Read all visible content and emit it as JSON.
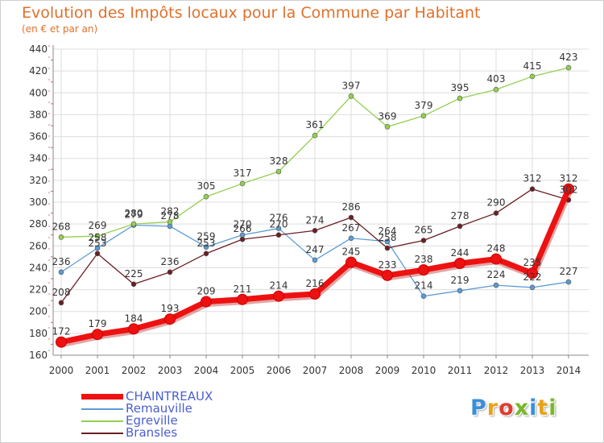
{
  "header": {
    "title": "Evolution des Impôts locaux pour la Commune par Habitant",
    "subtitle": "(en € et par an)"
  },
  "logo": {
    "text": "Proxiti",
    "colors": [
      "#3a8fd8",
      "#e8a317",
      "#e03c31",
      "#79b829",
      "#3a8fd8",
      "#e8a317",
      "#79b829"
    ]
  },
  "chart_data": {
    "type": "line",
    "categories": [
      "2000",
      "2001",
      "2002",
      "2003",
      "2004",
      "2005",
      "2006",
      "2007",
      "2008",
      "2009",
      "2010",
      "2011",
      "2012",
      "2013",
      "2014"
    ],
    "ylim": [
      160,
      440
    ],
    "yticks": [
      160,
      180,
      200,
      220,
      240,
      260,
      280,
      300,
      320,
      340,
      360,
      380,
      400,
      420,
      440
    ],
    "grid": true,
    "legend": "bottom-left",
    "series": [
      {
        "name": "CHAINTREAUX",
        "color": "#ee1111",
        "values": [
          172,
          179,
          184,
          193,
          209,
          211,
          214,
          216,
          245,
          233,
          238,
          244,
          248,
          235,
          312
        ]
      },
      {
        "name": "Remauville",
        "color": "#5b9bd5",
        "values": [
          236,
          258,
          279,
          278,
          259,
          270,
          276,
          247,
          267,
          264,
          214,
          219,
          224,
          222,
          227
        ]
      },
      {
        "name": "Egreville",
        "color": "#92d050",
        "values": [
          268,
          269,
          280,
          282,
          305,
          317,
          328,
          361,
          397,
          369,
          379,
          395,
          403,
          415,
          423
        ]
      },
      {
        "name": "Bransles",
        "color": "#6b1f23",
        "values": [
          208,
          253,
          225,
          236,
          253,
          266,
          270,
          274,
          286,
          258,
          265,
          278,
          290,
          312,
          302
        ]
      }
    ]
  }
}
